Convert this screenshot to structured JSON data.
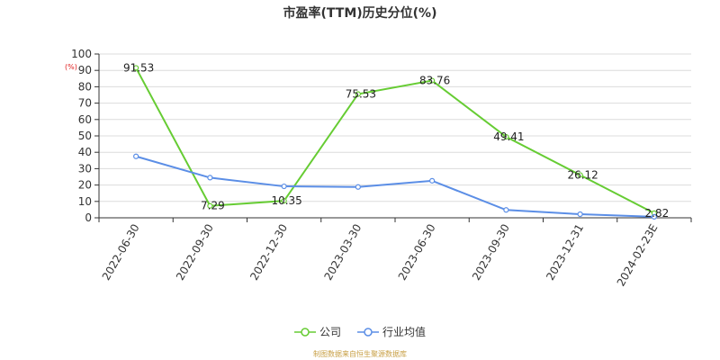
{
  "chart_data": {
    "type": "line",
    "title": "市盈率(TTM)历史分位(%)",
    "unit_label": "(%)",
    "categories": [
      "2022-06-30",
      "2022-09-30",
      "2022-12-30",
      "2023-03-30",
      "2023-06-30",
      "2023-09-30",
      "2023-12-31",
      "2024-02-23E"
    ],
    "series": [
      {
        "name": "公司",
        "color": "#66cc33",
        "values": [
          91.53,
          7.29,
          10.35,
          75.53,
          83.76,
          49.41,
          26.12,
          2.82
        ],
        "labels": [
          "91.53",
          "7.29",
          "10.35",
          "75.53",
          "83.76",
          "49.41",
          "26.12",
          "2.82"
        ]
      },
      {
        "name": "行业均值",
        "color": "#5b8ee6",
        "values": [
          37.5,
          24.5,
          19.2,
          18.8,
          22.6,
          4.8,
          2.2,
          0.6
        ]
      }
    ],
    "ylim": [
      0,
      100
    ],
    "yticks": [
      0,
      10,
      20,
      30,
      40,
      50,
      60,
      70,
      80,
      90,
      100
    ],
    "grid": true,
    "legend_position": "bottom"
  },
  "footer": {
    "source": "制图数据来自恒生聚源数据库"
  }
}
